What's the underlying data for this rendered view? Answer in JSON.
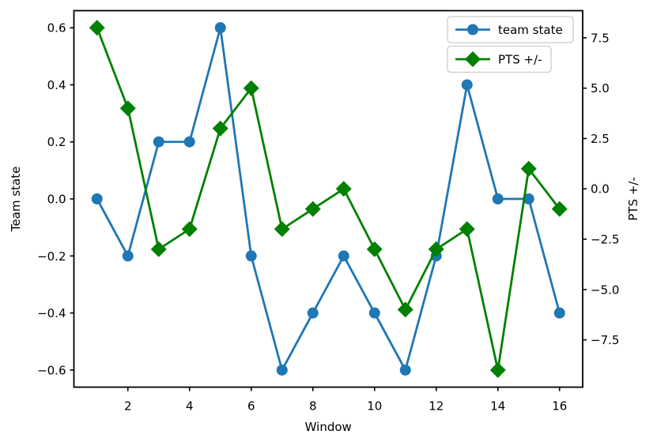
{
  "figure": {
    "background": "#ffffff",
    "spine_color": "#000000"
  },
  "chart_data": {
    "type": "line",
    "title": "",
    "xlabel": "Window",
    "ylabel_left": "Team state",
    "ylabel_right": "PTS +/-",
    "grid": false,
    "legend_position": "upper right",
    "x": [
      1,
      2,
      3,
      4,
      5,
      6,
      7,
      8,
      9,
      10,
      11,
      12,
      13,
      14,
      15,
      16
    ],
    "series": [
      {
        "name": "team state",
        "axis": "left",
        "color": "#1f77b4",
        "marker": "circle",
        "values": [
          0.0,
          -0.2,
          0.2,
          0.2,
          0.6,
          -0.2,
          -0.6,
          -0.4,
          -0.2,
          -0.4,
          -0.6,
          -0.2,
          0.4,
          0.0,
          0.0,
          -0.4
        ]
      },
      {
        "name": "PTS +/-",
        "axis": "right",
        "color": "#008000",
        "marker": "diamond",
        "values": [
          8,
          4,
          -3,
          -2,
          3,
          5,
          -2,
          -1,
          0,
          -3,
          -6,
          -3,
          -2,
          -9,
          1,
          -1
        ]
      }
    ],
    "xlim": [
      0.25,
      16.75
    ],
    "ylim_left": [
      -0.66,
      0.66
    ],
    "ylim_right": [
      -9.85,
      8.85
    ],
    "xticks": [
      2,
      4,
      6,
      8,
      10,
      12,
      14,
      16
    ],
    "xtick_labels": [
      "2",
      "4",
      "6",
      "8",
      "10",
      "12",
      "14",
      "16"
    ],
    "yticks_left": [
      0.6,
      0.4,
      0.2,
      0.0,
      -0.2,
      -0.4,
      -0.6
    ],
    "ytick_labels_left": [
      "0.6",
      "0.4",
      "0.2",
      "0.0",
      "−0.2",
      "−0.4",
      "−0.6"
    ],
    "yticks_right": [
      7.5,
      5.0,
      2.5,
      0.0,
      -2.5,
      -5.0,
      -7.5
    ],
    "ytick_labels_right": [
      "7.5",
      "5.0",
      "2.5",
      "0.0",
      "−2.5",
      "−5.0",
      "−7.5"
    ],
    "legend": [
      {
        "label": "team state"
      },
      {
        "label": "PTS +/-"
      }
    ]
  }
}
